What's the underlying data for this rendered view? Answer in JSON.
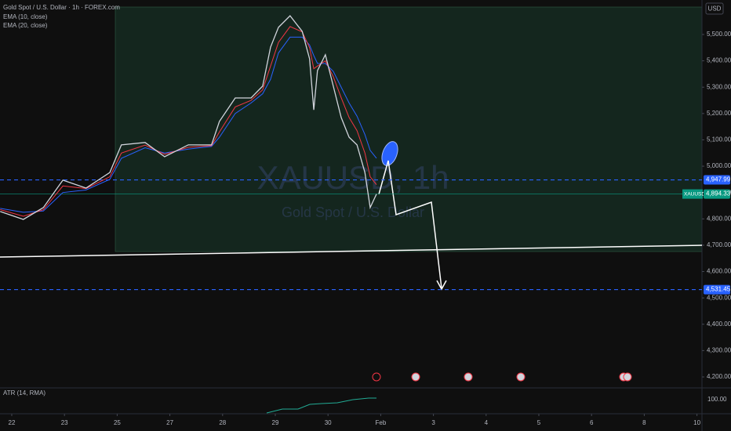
{
  "chart_data": {
    "type": "line",
    "title": "Gold Spot / U.S. Dollar · 1h · FOREX.com",
    "currency": "USD",
    "watermark": "XAUUSD, 1h",
    "watermark_subtitle": "Gold Spot / U.S. Dollar",
    "x": [
      -0.22,
      0.22,
      0.6,
      0.97,
      1.41,
      1.86,
      2.08,
      2.53,
      2.9,
      3.35,
      3.79,
      3.94,
      4.24,
      4.54,
      4.76,
      4.91,
      5.06,
      5.28,
      5.51,
      5.65,
      5.73,
      5.8,
      5.95,
      6.1,
      6.25,
      6.4,
      6.55,
      6.7,
      6.8,
      6.92
    ],
    "series": [
      {
        "name": "XAUUSD",
        "color": "#d1d4dc",
        "values": [
          4828,
          4798,
          4843,
          4947,
          4917,
          4976,
          5081,
          5090,
          5036,
          5081,
          5081,
          5170,
          5259,
          5259,
          5304,
          5452,
          5527,
          5571,
          5512,
          5408,
          5214,
          5363,
          5423,
          5304,
          5185,
          5110,
          5081,
          4976,
          4843,
          4894.33
        ]
      },
      {
        "name": "EMA (10, close)",
        "color": "#f23645",
        "values": [
          4835,
          4810,
          4835,
          4925,
          4915,
          4960,
          5050,
          5080,
          5045,
          5072,
          5078,
          5130,
          5225,
          5250,
          5290,
          5380,
          5470,
          5530,
          5510,
          5450,
          5370,
          5380,
          5400,
          5340,
          5260,
          5185,
          5135,
          5050,
          4960,
          4930
        ]
      },
      {
        "name": "EMA (20, close)",
        "color": "#2962ff",
        "values": [
          4840,
          4825,
          4830,
          4900,
          4910,
          4950,
          5030,
          5070,
          5050,
          5065,
          5075,
          5110,
          5200,
          5240,
          5275,
          5330,
          5430,
          5490,
          5490,
          5460,
          5420,
          5390,
          5390,
          5360,
          5300,
          5240,
          5190,
          5120,
          5060,
          5030
        ]
      }
    ],
    "levels": [
      {
        "value": 4947.99,
        "label": "4,947.99",
        "color": "#2962ff"
      },
      {
        "value": 4531.45,
        "label": "4,531.45",
        "color": "#2962ff"
      }
    ],
    "last_price": {
      "name": "XAUUSD",
      "value": 4894.33,
      "label": "4,894.33",
      "color": "#089981"
    },
    "xlim": [
      -0.223,
      13.095
    ],
    "xticks": [
      {
        "value": 0,
        "label": "22"
      },
      {
        "value": 1,
        "label": "23"
      },
      {
        "value": 2,
        "label": "25"
      },
      {
        "value": 3,
        "label": "27"
      },
      {
        "value": 4,
        "label": "28"
      },
      {
        "value": 5,
        "label": "29"
      },
      {
        "value": 6,
        "label": "30"
      },
      {
        "value": 7,
        "label": "Feb"
      },
      {
        "value": 8,
        "label": "3"
      },
      {
        "value": 9,
        "label": "4"
      },
      {
        "value": 10,
        "label": "5"
      },
      {
        "value": 11,
        "label": "6"
      },
      {
        "value": 12,
        "label": "8"
      },
      {
        "value": 13,
        "label": "10"
      }
    ],
    "ylim": [
      4173.2,
      5630.9
    ],
    "yticks": [
      {
        "value": 4200,
        "label": "4,200.00"
      },
      {
        "value": 4300,
        "label": "4,300.00"
      },
      {
        "value": 4400,
        "label": "4,400.00"
      },
      {
        "value": 4500,
        "label": "4,500.00"
      },
      {
        "value": 4600,
        "label": "4,600.00"
      },
      {
        "value": 4700,
        "label": "4,700.00"
      },
      {
        "value": 4800,
        "label": "4,800.00"
      },
      {
        "value": 4900,
        "label": "4,900.00"
      },
      {
        "value": 5000,
        "label": "5,000.00"
      },
      {
        "value": 5100,
        "label": "5,100.00"
      },
      {
        "value": 5200,
        "label": "5,200.00"
      },
      {
        "value": 5300,
        "label": "5,300.00"
      },
      {
        "value": 5400,
        "label": "5,400.00"
      },
      {
        "value": 5500,
        "label": "5,500.00"
      }
    ],
    "atr": {
      "name": "ATR (14, RMA)",
      "tick": {
        "value": 100,
        "label": "100.00"
      }
    }
  }
}
